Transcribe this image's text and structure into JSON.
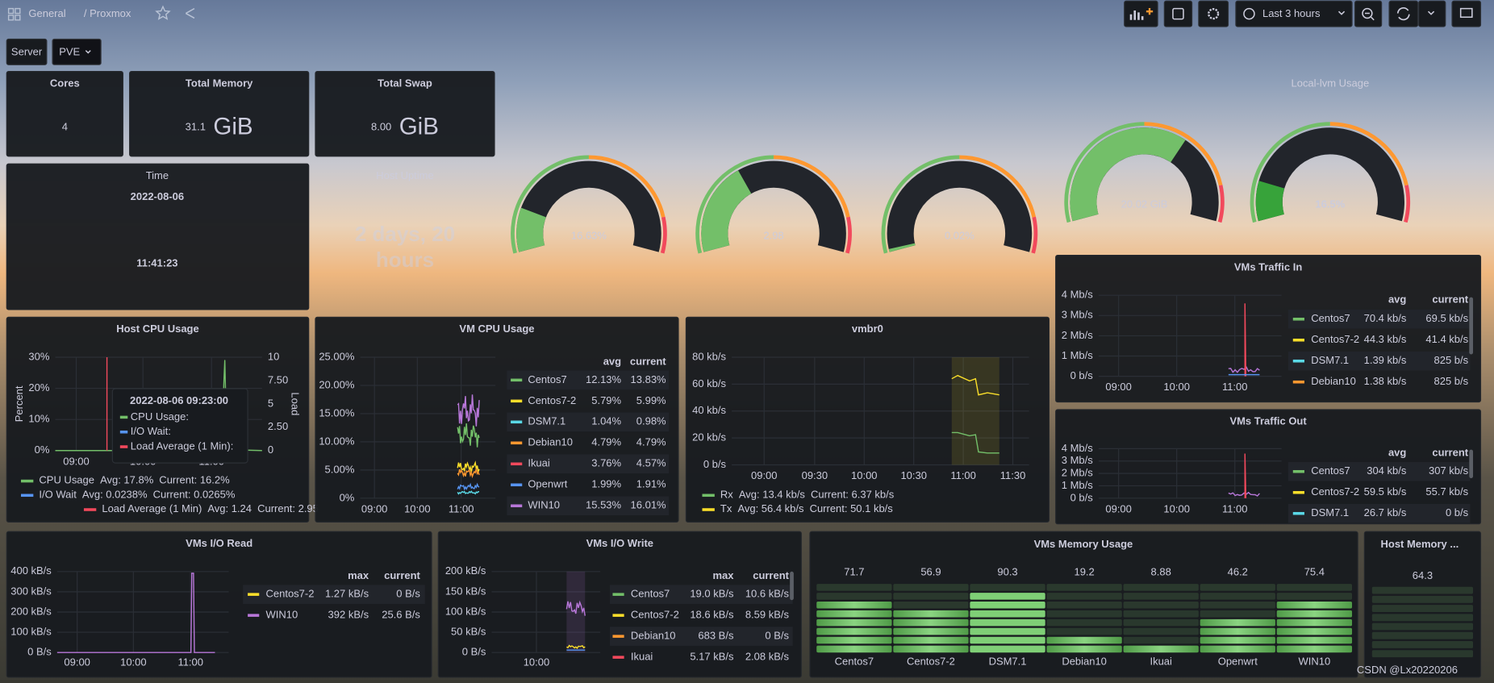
{
  "toolbar": {
    "breadcrumb": "General",
    "dashboard": "/ Proxmox",
    "time_range": "Last 3 hours"
  },
  "variables": {
    "label": "Server",
    "value": "PVE"
  },
  "stats": [
    {
      "title": "Cores",
      "value": "4"
    },
    {
      "title": "Total Memory",
      "value": "31.1",
      "unit": "GiB"
    },
    {
      "title": "Total Swap",
      "value": "8.00",
      "unit": "GiB"
    }
  ],
  "time_panel": {
    "title": "Time",
    "date": "2022-08-06",
    "clock": "11:41:23"
  },
  "uptime": {
    "title": "Host Uptime",
    "value": "2 days, 20 hours"
  },
  "gauges": [
    {
      "value": "16.63%"
    },
    {
      "value": "2.98"
    },
    {
      "value": "0.02%"
    },
    {
      "value": "20.02 GiB"
    },
    {
      "title": "Local-lvm Usage",
      "value": "16.5%"
    }
  ],
  "graphs": [
    {
      "title": "Host CPU Usage",
      "ylabel": "Percent",
      "y2label": "Load",
      "yticks": [
        "30%",
        "20%",
        "10%",
        "0%"
      ],
      "y2ticks": [
        "10",
        "7.50",
        "5",
        "2.50",
        "0"
      ],
      "xticks": [
        "09:00",
        "10:00",
        "11:00"
      ],
      "tooltip": {
        "time": "2022-08-06 09:23:00",
        "items": [
          {
            "name": "CPU Usage:",
            "color": "#73bf69"
          },
          {
            "name": "I/O Wait:",
            "color": "#5794f2"
          },
          {
            "name": "Load Average (1 Min):",
            "color": "#f2495c"
          }
        ]
      },
      "legend": {
        "type": "list",
        "rows": [
          {
            "name": "CPU Usage",
            "color": "#73bf69",
            "stats": [
              "Avg: 17.8%",
              "Current: 16.2%"
            ]
          },
          {
            "name": "I/O Wait",
            "color": "#5794f2",
            "stats": [
              "Avg: 0.0238%",
              "Current: 0.0265%"
            ]
          },
          {
            "name": "Load Average (1 Min)",
            "color": "#f2495c",
            "stats": [
              "Avg: 1.24",
              "Current: 2.95"
            ]
          }
        ]
      }
    },
    {
      "title": "VM CPU Usage",
      "yticks": [
        "25.00%",
        "20.00%",
        "15.00%",
        "10.00%",
        "5.00%",
        "0%"
      ],
      "xticks": [
        "09:00",
        "10:00",
        "11:00"
      ],
      "legend": {
        "type": "table",
        "columns": [
          "avg",
          "current"
        ],
        "rows": [
          {
            "name": "Centos7",
            "color": "#73bf69",
            "values": [
              "12.13%",
              "13.83%"
            ]
          },
          {
            "name": "Centos7-2",
            "color": "#fade2a",
            "values": [
              "5.79%",
              "5.99%"
            ]
          },
          {
            "name": "DSM7.1",
            "color": "#5ad8e6",
            "values": [
              "1.04%",
              "0.98%"
            ]
          },
          {
            "name": "Debian10",
            "color": "#ff9830",
            "values": [
              "4.79%",
              "4.79%"
            ]
          },
          {
            "name": "Ikuai",
            "color": "#f2495c",
            "values": [
              "3.76%",
              "4.57%"
            ]
          },
          {
            "name": "Openwrt",
            "color": "#5794f2",
            "values": [
              "1.99%",
              "1.91%"
            ]
          },
          {
            "name": "WIN10",
            "color": "#b877d9",
            "values": [
              "15.53%",
              "16.01%"
            ]
          }
        ]
      }
    },
    {
      "title": "vmbr0",
      "yticks": [
        "80 kb/s",
        "60 kb/s",
        "40 kb/s",
        "20 kb/s",
        "0 b/s"
      ],
      "xticks": [
        "09:00",
        "09:30",
        "10:00",
        "10:30",
        "11:00",
        "11:30"
      ],
      "legend": {
        "type": "list",
        "rows": [
          {
            "name": "Rx",
            "color": "#73bf69",
            "stats": [
              "Avg: 13.4 kb/s",
              "Current: 6.37 kb/s"
            ]
          },
          {
            "name": "Tx",
            "color": "#fade2a",
            "stats": [
              "Avg: 56.4 kb/s",
              "Current: 50.1 kb/s"
            ]
          }
        ]
      }
    },
    {
      "title": "VMs Traffic In",
      "yticks": [
        "4 Mb/s",
        "3 Mb/s",
        "2 Mb/s",
        "1 Mb/s",
        "0 b/s"
      ],
      "xticks": [
        "09:00",
        "10:00",
        "11:00"
      ],
      "legend": {
        "type": "table",
        "columns": [
          "avg",
          "current"
        ],
        "rows": [
          {
            "name": "Centos7",
            "color": "#73bf69",
            "values": [
              "70.4 kb/s",
              "69.5 kb/s"
            ]
          },
          {
            "name": "Centos7-2",
            "color": "#fade2a",
            "values": [
              "44.3 kb/s",
              "41.4 kb/s"
            ]
          },
          {
            "name": "DSM7.1",
            "color": "#5ad8e6",
            "values": [
              "1.39 kb/s",
              "825 b/s"
            ]
          },
          {
            "name": "Debian10",
            "color": "#ff9830",
            "values": [
              "1.38 kb/s",
              "825 b/s"
            ]
          }
        ]
      }
    },
    {
      "title": "VMs Traffic Out",
      "yticks": [
        "4 Mb/s",
        "3 Mb/s",
        "2 Mb/s",
        "1 Mb/s",
        "0 b/s"
      ],
      "xticks": [
        "09:00",
        "10:00",
        "11:00"
      ],
      "legend": {
        "type": "table",
        "columns": [
          "avg",
          "current"
        ],
        "rows": [
          {
            "name": "Centos7",
            "color": "#73bf69",
            "values": [
              "304 kb/s",
              "307 kb/s"
            ]
          },
          {
            "name": "Centos7-2",
            "color": "#fade2a",
            "values": [
              "59.5 kb/s",
              "55.7 kb/s"
            ]
          },
          {
            "name": "DSM7.1",
            "color": "#5ad8e6",
            "values": [
              "26.7 kb/s",
              "0 b/s"
            ]
          }
        ]
      }
    },
    {
      "title": "VMs I/O Read",
      "yticks": [
        "400 kB/s",
        "300 kB/s",
        "200 kB/s",
        "100 kB/s",
        "0 B/s"
      ],
      "xticks": [
        "09:00",
        "10:00",
        "11:00"
      ],
      "legend": {
        "type": "table",
        "columns": [
          "max",
          "current"
        ],
        "rows": [
          {
            "name": "Centos7-2",
            "color": "#fade2a",
            "values": [
              "1.27 kB/s",
              "0 B/s"
            ]
          },
          {
            "name": "WIN10",
            "color": "#b877d9",
            "values": [
              "392 kB/s",
              "25.6 B/s"
            ]
          }
        ]
      }
    },
    {
      "title": "VMs I/O Write",
      "yticks": [
        "200 kB/s",
        "150 kB/s",
        "100 kB/s",
        "50 kB/s",
        "0 B/s"
      ],
      "xticks": [
        "10:00"
      ],
      "legend": {
        "type": "table",
        "columns": [
          "max",
          "current"
        ],
        "rows": [
          {
            "name": "Centos7",
            "color": "#73bf69",
            "values": [
              "19.0 kB/s",
              "10.6 kB/s"
            ]
          },
          {
            "name": "Centos7-2",
            "color": "#fade2a",
            "values": [
              "18.6 kB/s",
              "8.59 kB/s"
            ]
          },
          {
            "name": "Debian10",
            "color": "#ff9830",
            "values": [
              "683 B/s",
              "0 B/s"
            ]
          },
          {
            "name": "Ikuai",
            "color": "#f2495c",
            "values": [
              "5.17 kB/s",
              "2.08 kB/s"
            ]
          }
        ]
      }
    }
  ],
  "memory": {
    "title": "VMs Memory Usage",
    "items": [
      {
        "name": "Centos7",
        "value": 71.7,
        "color": "#73bf69"
      },
      {
        "name": "Centos7-2",
        "value": 56.9,
        "color": "#73bf69"
      },
      {
        "name": "DSM7.1",
        "value": 90.3,
        "color": "#f2495c"
      },
      {
        "name": "Debian10",
        "value": 19.2,
        "color": "#73bf69"
      },
      {
        "name": "Ikuai",
        "value": 8.88,
        "color": "#73bf69"
      },
      {
        "name": "Openwrt",
        "value": 46.2,
        "color": "#73bf69"
      },
      {
        "name": "WIN10",
        "value": 75.4,
        "color": "#73bf69"
      }
    ]
  },
  "host_memory": {
    "title": "Host Memory ...",
    "value": 64.3,
    "color": "#73bf69"
  },
  "watermark": "CSDN @Lx20220206"
}
